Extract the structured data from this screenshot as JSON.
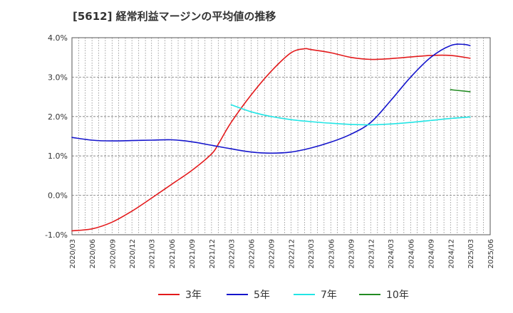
{
  "chart_data": {
    "type": "line",
    "title": "[5612]  経常利益マージンの平均値の推移",
    "xlabel": "",
    "ylabel": "",
    "ylim": [
      -1.0,
      4.0
    ],
    "yticks": [
      "-1.0%",
      "0.0%",
      "1.0%",
      "2.0%",
      "3.0%",
      "4.0%"
    ],
    "yticks_values": [
      -1.0,
      0.0,
      1.0,
      2.0,
      3.0,
      4.0
    ],
    "xticks": [
      "2020/03",
      "2020/06",
      "2020/09",
      "2020/12",
      "2021/03",
      "2021/06",
      "2021/09",
      "2021/12",
      "2022/03",
      "2022/06",
      "2022/09",
      "2022/12",
      "2023/03",
      "2023/06",
      "2023/09",
      "2023/12",
      "2024/03",
      "2024/06",
      "2024/09",
      "2024/12",
      "2025/03",
      "2025/06"
    ],
    "grid": true,
    "legend_position": "bottom",
    "series": [
      {
        "name": "3年",
        "color": "#e31a1c",
        "points": [
          [
            "2020/03",
            -0.9
          ],
          [
            "2020/06",
            -0.85
          ],
          [
            "2020/09",
            -0.68
          ],
          [
            "2020/12",
            -0.4
          ],
          [
            "2021/03",
            -0.07
          ],
          [
            "2021/06",
            0.28
          ],
          [
            "2021/09",
            0.63
          ],
          [
            "2021/12",
            1.05
          ],
          [
            "2022/01",
            1.3
          ],
          [
            "2022/03",
            1.85
          ],
          [
            "2022/06",
            2.55
          ],
          [
            "2022/09",
            3.15
          ],
          [
            "2022/12",
            3.62
          ],
          [
            "2023/02",
            3.72
          ],
          [
            "2023/03",
            3.7
          ],
          [
            "2023/06",
            3.62
          ],
          [
            "2023/09",
            3.5
          ],
          [
            "2023/12",
            3.45
          ],
          [
            "2024/03",
            3.47
          ],
          [
            "2024/06",
            3.51
          ],
          [
            "2024/09",
            3.55
          ],
          [
            "2024/12",
            3.55
          ],
          [
            "2025/03",
            3.48
          ]
        ]
      },
      {
        "name": "5年",
        "color": "#1515cc",
        "points": [
          [
            "2020/03",
            1.47
          ],
          [
            "2020/06",
            1.4
          ],
          [
            "2020/09",
            1.38
          ],
          [
            "2020/12",
            1.39
          ],
          [
            "2021/03",
            1.4
          ],
          [
            "2021/06",
            1.41
          ],
          [
            "2021/09",
            1.36
          ],
          [
            "2021/12",
            1.27
          ],
          [
            "2022/03",
            1.18
          ],
          [
            "2022/06",
            1.1
          ],
          [
            "2022/09",
            1.07
          ],
          [
            "2022/12",
            1.1
          ],
          [
            "2023/03",
            1.2
          ],
          [
            "2023/06",
            1.35
          ],
          [
            "2023/09",
            1.55
          ],
          [
            "2023/12",
            1.85
          ],
          [
            "2024/03",
            2.4
          ],
          [
            "2024/06",
            3.0
          ],
          [
            "2024/09",
            3.5
          ],
          [
            "2024/12",
            3.8
          ],
          [
            "2025/02",
            3.83
          ],
          [
            "2025/03",
            3.8
          ]
        ]
      },
      {
        "name": "7年",
        "color": "#22e5e5",
        "points": [
          [
            "2022/03",
            2.3
          ],
          [
            "2022/06",
            2.12
          ],
          [
            "2022/09",
            2.0
          ],
          [
            "2022/12",
            1.92
          ],
          [
            "2023/03",
            1.87
          ],
          [
            "2023/06",
            1.83
          ],
          [
            "2023/09",
            1.8
          ],
          [
            "2023/12",
            1.79
          ],
          [
            "2024/03",
            1.81
          ],
          [
            "2024/06",
            1.85
          ],
          [
            "2024/09",
            1.9
          ],
          [
            "2024/12",
            1.95
          ],
          [
            "2025/03",
            1.99
          ]
        ]
      },
      {
        "name": "10年",
        "color": "#228b22",
        "points": [
          [
            "2024/12",
            2.68
          ],
          [
            "2025/03",
            2.63
          ]
        ]
      }
    ]
  }
}
